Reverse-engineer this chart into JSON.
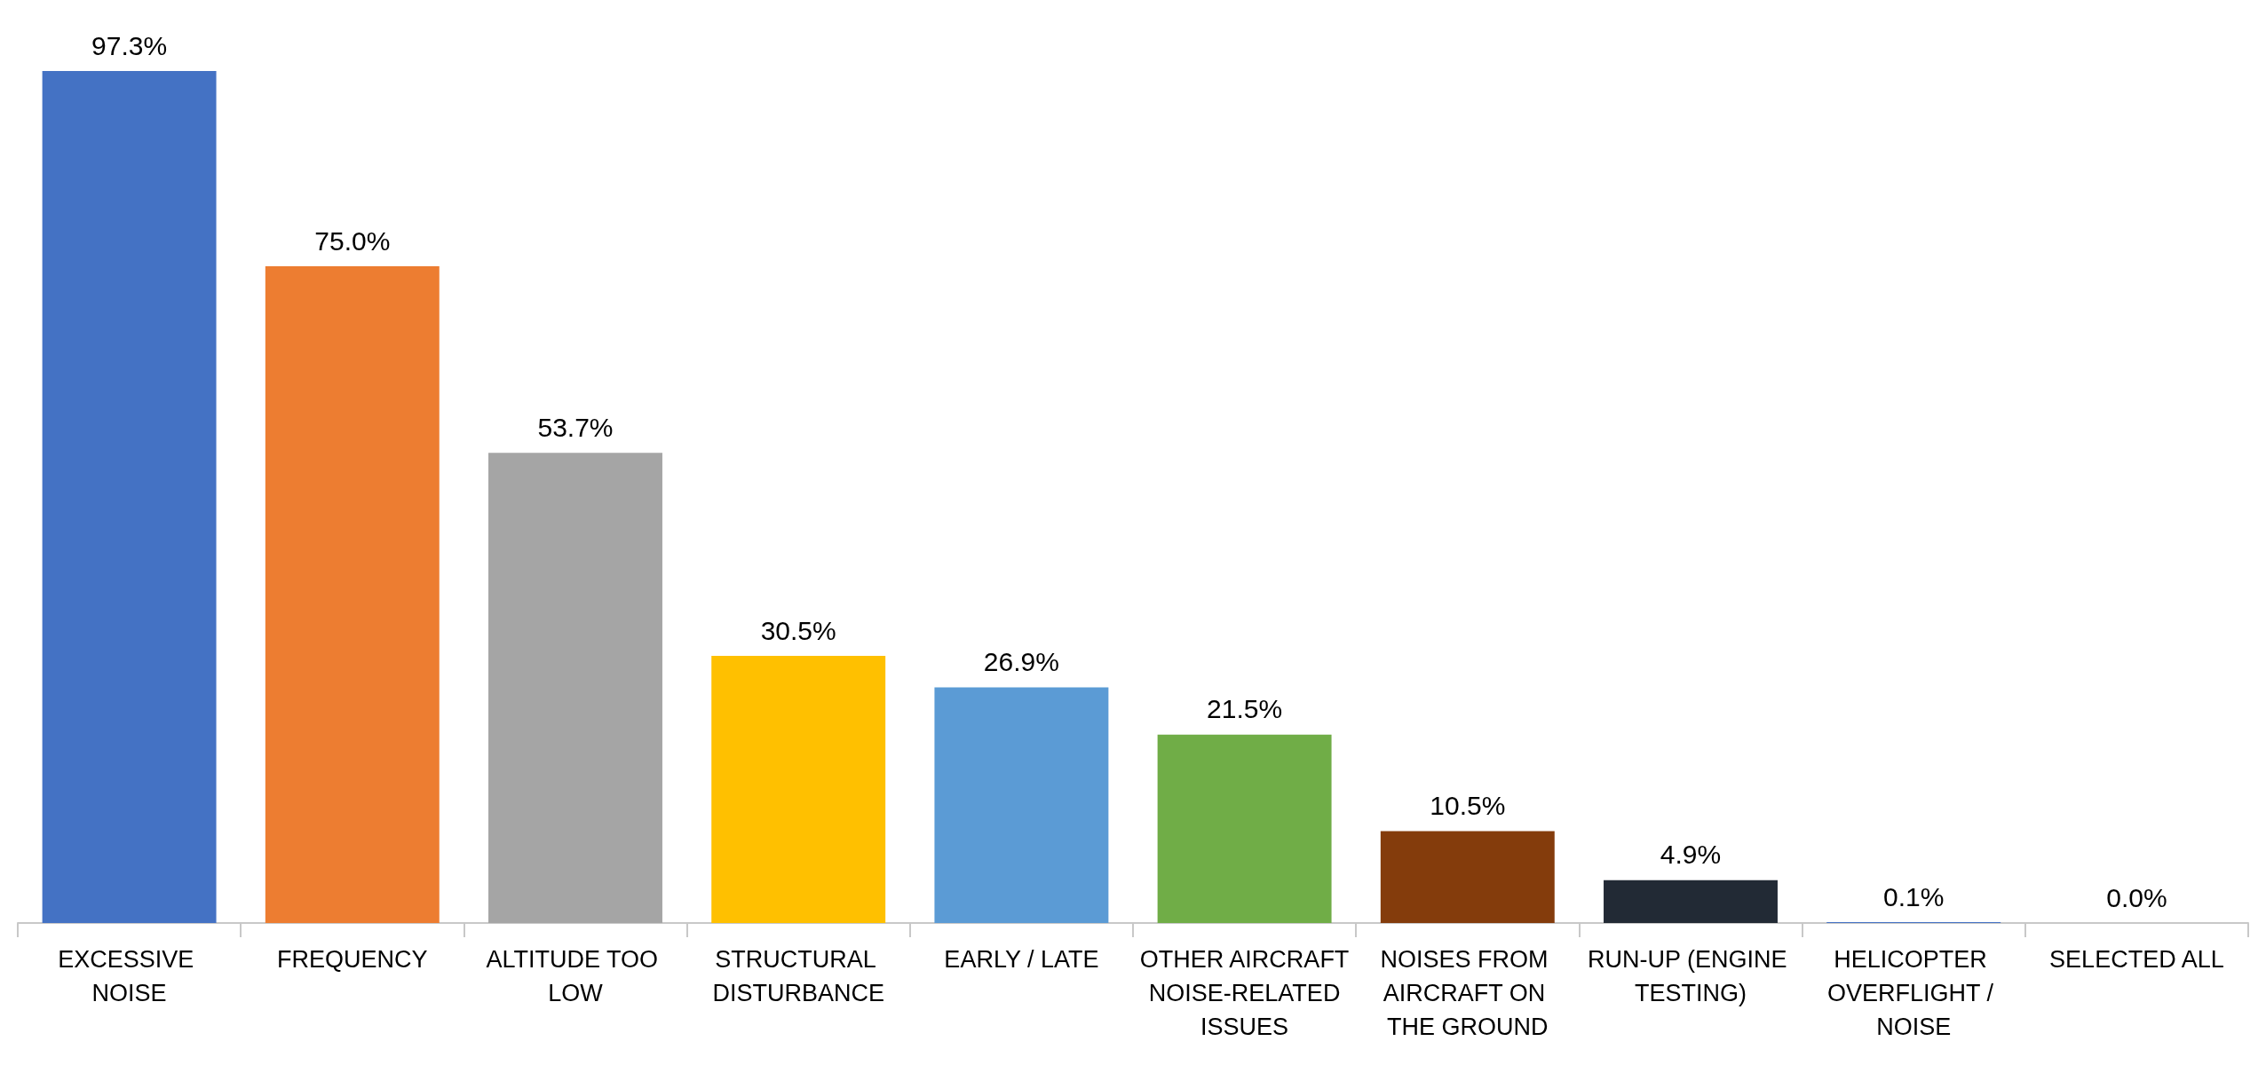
{
  "chart_data": {
    "type": "bar",
    "categories": [
      "EXCESSIVE NOISE",
      "FREQUENCY",
      "ALTITUDE TOO LOW",
      "STRUCTURAL DISTURBANCE",
      "EARLY / LATE",
      "OTHER AIRCRAFT NOISE-RELATED ISSUES",
      "NOISES FROM AIRCRAFT ON THE GROUND",
      "RUN-UP (ENGINE TESTING)",
      "HELICOPTER OVERFLIGHT / NOISE",
      "SELECTED ALL"
    ],
    "values": [
      97.3,
      75.0,
      53.7,
      30.5,
      26.9,
      21.5,
      10.5,
      4.9,
      0.1,
      0.0
    ],
    "value_labels": [
      "97.3%",
      "75.0%",
      "53.7%",
      "30.5%",
      "26.9%",
      "21.5%",
      "10.5%",
      "4.9%",
      "0.1%",
      "0.0%"
    ],
    "colors": [
      "#4472c4",
      "#ed7d31",
      "#a5a5a5",
      "#ffc000",
      "#5b9bd5",
      "#70ad47",
      "#843c0c",
      "#222a35",
      "#4472c4",
      "#4472c4"
    ]
  }
}
